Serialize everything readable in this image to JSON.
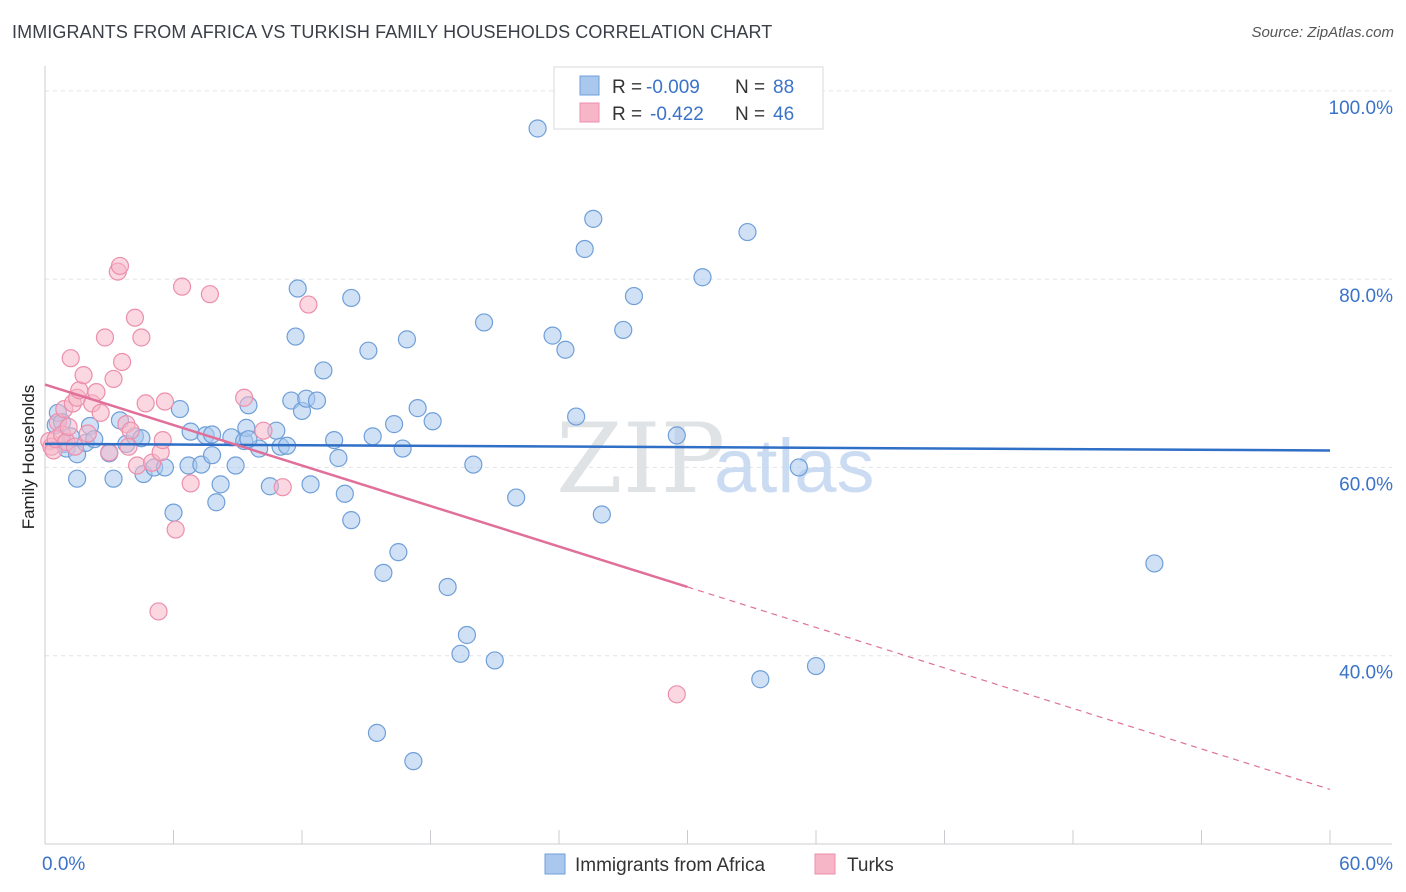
{
  "header": {
    "title": "IMMIGRANTS FROM AFRICA VS TURKISH FAMILY HOUSEHOLDS CORRELATION CHART",
    "source": "Source: ZipAtlas.com"
  },
  "watermark": {
    "zip": "ZIP",
    "atlas": "atlas"
  },
  "colors": {
    "blue_fill": "#aac8ee",
    "blue_stroke": "#6f9fd8",
    "blue_line": "#2f6fc6",
    "pink_fill": "#f6b6c8",
    "pink_stroke": "#ec8fac",
    "pink_line": "#e0709a",
    "value_text": "#3a73c8",
    "grid": "#e0e3e8"
  },
  "legend": {
    "rows": [
      {
        "r_label": "R =",
        "r_value": "-0.009",
        "n_label": "N =",
        "n_value": "88"
      },
      {
        "r_label": "R =",
        "r_value": "-0.422",
        "n_label": "N =",
        "n_value": "46"
      }
    ]
  },
  "bottom_legend": [
    "Immigrants from Africa",
    "Turks"
  ],
  "chart_data": {
    "type": "scatter",
    "title": "IMMIGRANTS FROM AFRICA VS TURKISH FAMILY HOUSEHOLDS CORRELATION CHART",
    "xlabel": "",
    "ylabel": "Family Households",
    "xlim": [
      0,
      60
    ],
    "ylim": [
      20,
      102
    ],
    "x_tick_labels": [
      "0.0%",
      "60.0%"
    ],
    "y_ticks": [
      40,
      60,
      80,
      100
    ],
    "y_tick_labels": [
      "40.0%",
      "60.0%",
      "80.0%",
      "100.0%"
    ],
    "grid": true,
    "series": [
      {
        "name": "Immigrants from Africa",
        "r": -0.009,
        "n": 88,
        "trend": {
          "x": [
            0,
            60
          ],
          "y": [
            62.5,
            61.8
          ],
          "style": "solid"
        },
        "points": [
          [
            0.5,
            64.5
          ],
          [
            0.6,
            65.8
          ],
          [
            0.8,
            64.8
          ],
          [
            0.9,
            62.5
          ],
          [
            1.0,
            62.0
          ],
          [
            1.2,
            63.3
          ],
          [
            1.5,
            61.4
          ],
          [
            1.9,
            62.6
          ],
          [
            2.1,
            64.4
          ],
          [
            2.3,
            63.0
          ],
          [
            3.0,
            61.5
          ],
          [
            3.5,
            65.0
          ],
          [
            3.8,
            62.5
          ],
          [
            4.2,
            63.3
          ],
          [
            4.6,
            59.3
          ],
          [
            5.1,
            60.0
          ],
          [
            5.6,
            60.0
          ],
          [
            1.5,
            58.8
          ],
          [
            3.2,
            58.8
          ],
          [
            6.0,
            55.2
          ],
          [
            6.3,
            66.2
          ],
          [
            6.7,
            60.2
          ],
          [
            6.8,
            63.8
          ],
          [
            7.3,
            60.3
          ],
          [
            7.5,
            63.4
          ],
          [
            7.8,
            61.3
          ],
          [
            7.8,
            63.5
          ],
          [
            8.0,
            56.3
          ],
          [
            8.2,
            58.2
          ],
          [
            8.7,
            63.2
          ],
          [
            8.9,
            60.2
          ],
          [
            9.3,
            62.8
          ],
          [
            9.5,
            66.6
          ],
          [
            9.4,
            64.2
          ],
          [
            10.0,
            62.0
          ],
          [
            10.5,
            58.0
          ],
          [
            10.8,
            63.9
          ],
          [
            11.0,
            62.2
          ],
          [
            11.3,
            62.3
          ],
          [
            11.5,
            67.1
          ],
          [
            11.8,
            79.0
          ],
          [
            11.7,
            73.9
          ],
          [
            12.0,
            66.0
          ],
          [
            12.2,
            67.3
          ],
          [
            12.4,
            58.2
          ],
          [
            12.7,
            67.1
          ],
          [
            13.0,
            70.3
          ],
          [
            13.5,
            62.9
          ],
          [
            13.7,
            61.0
          ],
          [
            14.0,
            57.2
          ],
          [
            14.3,
            54.4
          ],
          [
            14.3,
            78.0
          ],
          [
            15.1,
            72.4
          ],
          [
            15.3,
            63.3
          ],
          [
            15.8,
            48.8
          ],
          [
            16.3,
            64.6
          ],
          [
            16.5,
            51.0
          ],
          [
            16.7,
            62.0
          ],
          [
            16.9,
            73.6
          ],
          [
            17.4,
            66.3
          ],
          [
            18.1,
            64.9
          ],
          [
            18.8,
            47.3
          ],
          [
            19.7,
            42.2
          ],
          [
            20.0,
            60.3
          ],
          [
            20.5,
            75.4
          ],
          [
            21.0,
            39.5
          ],
          [
            22.0,
            56.8
          ],
          [
            23.0,
            96.0
          ],
          [
            23.7,
            74.0
          ],
          [
            24.3,
            72.5
          ],
          [
            24.8,
            65.4
          ],
          [
            25.2,
            83.2
          ],
          [
            25.6,
            86.4
          ],
          [
            26.0,
            55.0
          ],
          [
            27.0,
            74.6
          ],
          [
            27.5,
            78.2
          ],
          [
            29.5,
            63.4
          ],
          [
            30.7,
            80.2
          ],
          [
            32.8,
            85.0
          ],
          [
            33.4,
            37.5
          ],
          [
            35.2,
            60.0
          ],
          [
            36.0,
            38.9
          ],
          [
            51.8,
            49.8
          ],
          [
            15.5,
            31.8
          ],
          [
            17.2,
            28.8
          ],
          [
            19.4,
            40.2
          ],
          [
            9.5,
            63.0
          ],
          [
            4.5,
            63.1
          ]
        ]
      },
      {
        "name": "Turks",
        "r": -0.422,
        "n": 46,
        "trend": {
          "x": [
            0,
            30
          ],
          "y": [
            68.8,
            47.3
          ],
          "dashed_to": {
            "x": 60,
            "y": 25.8
          }
        },
        "points": [
          [
            0.2,
            62.8
          ],
          [
            0.3,
            62.2
          ],
          [
            0.4,
            61.8
          ],
          [
            0.5,
            63.0
          ],
          [
            0.6,
            64.8
          ],
          [
            0.8,
            63.5
          ],
          [
            0.9,
            66.2
          ],
          [
            1.0,
            62.7
          ],
          [
            1.1,
            64.3
          ],
          [
            1.2,
            71.6
          ],
          [
            1.3,
            66.8
          ],
          [
            1.4,
            62.2
          ],
          [
            1.5,
            67.4
          ],
          [
            1.6,
            68.2
          ],
          [
            1.8,
            69.8
          ],
          [
            2.0,
            63.6
          ],
          [
            2.2,
            66.8
          ],
          [
            2.4,
            68.0
          ],
          [
            2.6,
            65.8
          ],
          [
            2.8,
            73.8
          ],
          [
            3.0,
            61.6
          ],
          [
            3.2,
            69.4
          ],
          [
            3.4,
            80.8
          ],
          [
            3.5,
            81.4
          ],
          [
            3.6,
            71.2
          ],
          [
            3.8,
            64.6
          ],
          [
            4.0,
            63.9
          ],
          [
            4.2,
            75.9
          ],
          [
            4.3,
            60.2
          ],
          [
            4.5,
            73.8
          ],
          [
            4.7,
            66.8
          ],
          [
            5.0,
            60.5
          ],
          [
            5.3,
            44.7
          ],
          [
            5.4,
            61.6
          ],
          [
            5.5,
            62.9
          ],
          [
            5.6,
            67.0
          ],
          [
            6.1,
            53.4
          ],
          [
            6.4,
            79.2
          ],
          [
            6.8,
            58.3
          ],
          [
            7.7,
            78.4
          ],
          [
            9.3,
            67.4
          ],
          [
            10.2,
            63.9
          ],
          [
            11.1,
            57.9
          ],
          [
            12.3,
            77.3
          ],
          [
            29.5,
            35.9
          ],
          [
            3.9,
            62.2
          ]
        ]
      }
    ]
  }
}
